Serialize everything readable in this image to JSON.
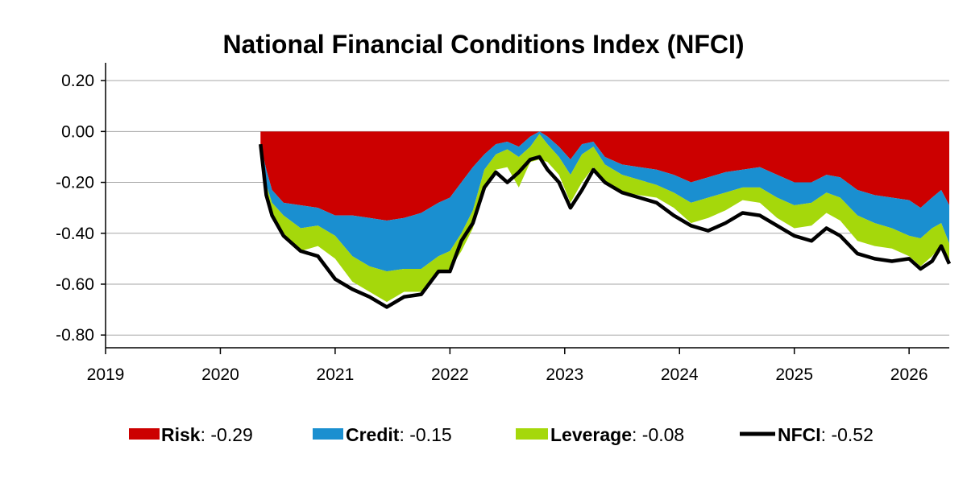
{
  "chart_data": {
    "type": "area",
    "title": "National Financial Conditions Index (NFCI)",
    "xlabel": "",
    "ylabel": "",
    "xlim": [
      2019.0,
      2026.35
    ],
    "ylim": [
      -0.85,
      0.27
    ],
    "x_ticks": [
      "2019",
      "2020",
      "2021",
      "2022",
      "2023",
      "2024",
      "2025",
      "2026"
    ],
    "y_ticks": [
      "0.20",
      "0.00",
      "-0.20",
      "-0.40",
      "-0.60",
      "-0.80"
    ],
    "grid": "horizontal",
    "legend_position": "bottom",
    "x": [
      2020.35,
      2020.4,
      2020.45,
      2020.55,
      2020.7,
      2020.85,
      2021.0,
      2021.15,
      2021.3,
      2021.45,
      2021.6,
      2021.75,
      2021.9,
      2022.0,
      2022.1,
      2022.2,
      2022.3,
      2022.4,
      2022.5,
      2022.6,
      2022.7,
      2022.78,
      2022.85,
      2022.95,
      2023.05,
      2023.15,
      2023.25,
      2023.35,
      2023.5,
      2023.65,
      2023.8,
      2023.95,
      2024.1,
      2024.25,
      2024.4,
      2024.55,
      2024.7,
      2024.85,
      2025.0,
      2025.15,
      2025.28,
      2025.4,
      2025.55,
      2025.7,
      2025.85,
      2026.0,
      2026.1,
      2026.2,
      2026.28,
      2026.35
    ],
    "series": [
      {
        "name": "Risk",
        "values": [
          -0.05,
          -0.15,
          -0.23,
          -0.28,
          -0.29,
          -0.3,
          -0.33,
          -0.33,
          -0.34,
          -0.35,
          -0.34,
          -0.32,
          -0.28,
          -0.26,
          -0.2,
          -0.14,
          -0.09,
          -0.05,
          -0.04,
          -0.06,
          -0.02,
          0.0,
          -0.02,
          -0.06,
          -0.11,
          -0.05,
          -0.04,
          -0.1,
          -0.13,
          -0.14,
          -0.15,
          -0.17,
          -0.2,
          -0.18,
          -0.16,
          -0.15,
          -0.14,
          -0.17,
          -0.2,
          -0.2,
          -0.17,
          -0.18,
          -0.23,
          -0.25,
          -0.26,
          -0.27,
          -0.3,
          -0.26,
          -0.23,
          -0.29
        ]
      },
      {
        "name": "Credit",
        "values": [
          0.0,
          -0.06,
          -0.05,
          -0.05,
          -0.09,
          -0.07,
          -0.08,
          -0.16,
          -0.19,
          -0.2,
          -0.2,
          -0.22,
          -0.21,
          -0.21,
          -0.2,
          -0.17,
          -0.06,
          -0.04,
          -0.03,
          -0.04,
          -0.04,
          -0.01,
          -0.03,
          -0.04,
          -0.06,
          -0.04,
          -0.02,
          -0.03,
          -0.04,
          -0.05,
          -0.06,
          -0.07,
          -0.08,
          -0.08,
          -0.08,
          -0.07,
          -0.08,
          -0.09,
          -0.09,
          -0.08,
          -0.07,
          -0.08,
          -0.1,
          -0.11,
          -0.12,
          -0.14,
          -0.12,
          -0.12,
          -0.13,
          -0.15
        ]
      },
      {
        "name": "Leverage",
        "values": [
          0.0,
          -0.04,
          -0.05,
          -0.08,
          -0.09,
          -0.08,
          -0.09,
          -0.1,
          -0.1,
          -0.12,
          -0.09,
          -0.09,
          -0.07,
          -0.07,
          -0.07,
          -0.07,
          -0.08,
          -0.06,
          -0.07,
          -0.12,
          -0.06,
          -0.1,
          -0.07,
          -0.07,
          -0.11,
          -0.11,
          -0.08,
          -0.07,
          -0.07,
          -0.06,
          -0.05,
          -0.06,
          -0.08,
          -0.08,
          -0.07,
          -0.05,
          -0.06,
          -0.08,
          -0.09,
          -0.09,
          -0.08,
          -0.09,
          -0.1,
          -0.09,
          -0.08,
          -0.08,
          -0.11,
          -0.11,
          -0.09,
          -0.08
        ]
      },
      {
        "name": "NFCI",
        "values": [
          -0.05,
          -0.25,
          -0.33,
          -0.41,
          -0.47,
          -0.49,
          -0.58,
          -0.62,
          -0.65,
          -0.69,
          -0.65,
          -0.64,
          -0.55,
          -0.55,
          -0.43,
          -0.36,
          -0.22,
          -0.16,
          -0.2,
          -0.16,
          -0.11,
          -0.1,
          -0.15,
          -0.2,
          -0.3,
          -0.23,
          -0.15,
          -0.2,
          -0.24,
          -0.26,
          -0.28,
          -0.33,
          -0.37,
          -0.39,
          -0.36,
          -0.32,
          -0.33,
          -0.37,
          -0.41,
          -0.43,
          -0.38,
          -0.41,
          -0.48,
          -0.5,
          -0.51,
          -0.5,
          -0.54,
          -0.51,
          -0.45,
          -0.52
        ]
      }
    ],
    "colors": {
      "Risk": "#cc0000",
      "Credit": "#1a8fd0",
      "Leverage": "#a5d80b",
      "NFCI": "#000000"
    }
  },
  "legend": [
    {
      "name": "Risk",
      "value": ": -0.29"
    },
    {
      "name": "Credit",
      "value": ": -0.15"
    },
    {
      "name": "Leverage",
      "value": ": -0.08"
    },
    {
      "name": "NFCI",
      "value": ": -0.52"
    }
  ]
}
